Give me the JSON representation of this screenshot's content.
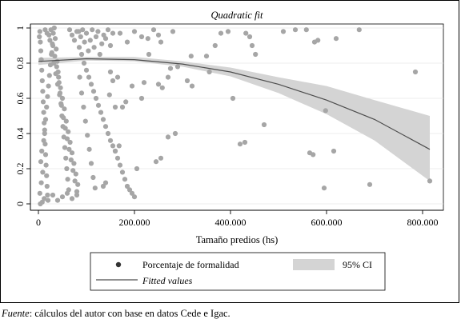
{
  "chart_data": {
    "type": "scatter",
    "title": "Quadratic fit",
    "xlabel": "Tamaño predios (hs)",
    "ylabel": "",
    "xlim": [
      0,
      820000
    ],
    "ylim": [
      0,
      1
    ],
    "x_ticks": [
      0,
      200000,
      400000,
      600000,
      800000
    ],
    "x_tick_labels": [
      "0",
      "200.000",
      "400.000",
      "600.000",
      "800.000"
    ],
    "y_ticks": [
      0,
      0.2,
      0.4,
      0.6,
      0.8,
      1
    ],
    "y_tick_labels": [
      "0",
      "0.2",
      "0.4",
      "0.6",
      "0.8",
      "1"
    ],
    "grid": true,
    "legend_position": "bottom",
    "legend": [
      {
        "label": "Porcentaje de formalidad",
        "symbol": "marker"
      },
      {
        "label": "95% CI",
        "symbol": "band"
      },
      {
        "label": "Fitted values",
        "symbol": "line"
      }
    ],
    "fit": {
      "x": [
        0,
        100000,
        200000,
        300000,
        400000,
        500000,
        600000,
        700000,
        815000
      ],
      "y": [
        0.81,
        0.825,
        0.82,
        0.795,
        0.75,
        0.68,
        0.59,
        0.48,
        0.31
      ],
      "ci_low": [
        0.79,
        0.815,
        0.81,
        0.78,
        0.725,
        0.63,
        0.51,
        0.36,
        0.13
      ],
      "ci_high": [
        0.83,
        0.835,
        0.835,
        0.81,
        0.775,
        0.72,
        0.67,
        0.59,
        0.5
      ]
    },
    "points": [
      [
        2000,
        0.95
      ],
      [
        3000,
        0.98
      ],
      [
        4000,
        0.92
      ],
      [
        5000,
        0.87
      ],
      [
        6000,
        0.82
      ],
      [
        7000,
        0.76
      ],
      [
        8000,
        0.7
      ],
      [
        9000,
        0.64
      ],
      [
        10000,
        0.58
      ],
      [
        11000,
        0.52
      ],
      [
        12000,
        0.46
      ],
      [
        13000,
        0.4
      ],
      [
        14000,
        0.34
      ],
      [
        15000,
        0.28
      ],
      [
        16000,
        0.22
      ],
      [
        17000,
        0.16
      ],
      [
        18000,
        0.1
      ],
      [
        19000,
        0.05
      ],
      [
        20000,
        0.02
      ],
      [
        4000,
        0.0
      ],
      [
        8000,
        0.01
      ],
      [
        12000,
        0.03
      ],
      [
        3000,
        0.06
      ],
      [
        6000,
        0.12
      ],
      [
        9000,
        0.18
      ],
      [
        5000,
        0.24
      ],
      [
        7000,
        0.3
      ],
      [
        11000,
        0.36
      ],
      [
        13000,
        0.42
      ],
      [
        15000,
        0.48
      ],
      [
        17000,
        0.55
      ],
      [
        19000,
        0.61
      ],
      [
        21000,
        0.67
      ],
      [
        23000,
        0.73
      ],
      [
        25000,
        0.79
      ],
      [
        27000,
        0.85
      ],
      [
        29000,
        0.91
      ],
      [
        31000,
        0.97
      ],
      [
        33000,
        1.0
      ],
      [
        35000,
        0.94
      ],
      [
        37000,
        0.88
      ],
      [
        39000,
        0.81
      ],
      [
        41000,
        0.75
      ],
      [
        43000,
        0.69
      ],
      [
        45000,
        0.63
      ],
      [
        47000,
        0.57
      ],
      [
        49000,
        0.5
      ],
      [
        51000,
        0.44
      ],
      [
        53000,
        0.38
      ],
      [
        55000,
        0.32
      ],
      [
        57000,
        0.26
      ],
      [
        59000,
        0.2
      ],
      [
        61000,
        0.14
      ],
      [
        63000,
        0.08
      ],
      [
        22000,
        0.96
      ],
      [
        26000,
        0.99
      ],
      [
        30000,
        0.9
      ],
      [
        34000,
        0.84
      ],
      [
        38000,
        0.78
      ],
      [
        42000,
        0.72
      ],
      [
        46000,
        0.66
      ],
      [
        50000,
        0.6
      ],
      [
        54000,
        0.54
      ],
      [
        58000,
        0.47
      ],
      [
        62000,
        0.41
      ],
      [
        66000,
        0.35
      ],
      [
        70000,
        0.29
      ],
      [
        74000,
        0.23
      ],
      [
        78000,
        0.17
      ],
      [
        82000,
        0.11
      ],
      [
        14000,
        0.99
      ],
      [
        18000,
        0.97
      ],
      [
        24000,
        0.93
      ],
      [
        28000,
        0.86
      ],
      [
        32000,
        0.8
      ],
      [
        36000,
        0.74
      ],
      [
        40000,
        0.68
      ],
      [
        44000,
        0.62
      ],
      [
        48000,
        0.56
      ],
      [
        52000,
        0.49
      ],
      [
        56000,
        0.43
      ],
      [
        60000,
        0.37
      ],
      [
        64000,
        0.31
      ],
      [
        68000,
        0.25
      ],
      [
        72000,
        0.19
      ],
      [
        76000,
        0.13
      ],
      [
        80000,
        0.07
      ],
      [
        84000,
        0.98
      ],
      [
        88000,
        0.95
      ],
      [
        92000,
        0.99
      ],
      [
        96000,
        0.92
      ],
      [
        100000,
        0.97
      ],
      [
        104000,
        0.87
      ],
      [
        108000,
        0.93
      ],
      [
        112000,
        0.99
      ],
      [
        116000,
        0.89
      ],
      [
        120000,
        0.95
      ],
      [
        124000,
        0.98
      ],
      [
        128000,
        0.85
      ],
      [
        132000,
        0.91
      ],
      [
        136000,
        0.96
      ],
      [
        140000,
        0.94
      ],
      [
        145000,
        0.99
      ],
      [
        150000,
        0.9
      ],
      [
        155000,
        0.97
      ],
      [
        65000,
        0.99
      ],
      [
        70000,
        0.96
      ],
      [
        75000,
        0.93
      ],
      [
        80000,
        0.98
      ],
      [
        85000,
        0.89
      ],
      [
        90000,
        0.85
      ],
      [
        95000,
        0.8
      ],
      [
        100000,
        0.76
      ],
      [
        105000,
        0.72
      ],
      [
        110000,
        0.68
      ],
      [
        115000,
        0.64
      ],
      [
        120000,
        0.6
      ],
      [
        125000,
        0.56
      ],
      [
        130000,
        0.52
      ],
      [
        135000,
        0.48
      ],
      [
        140000,
        0.44
      ],
      [
        145000,
        0.4
      ],
      [
        150000,
        0.36
      ],
      [
        155000,
        0.33
      ],
      [
        160000,
        0.3
      ],
      [
        165000,
        0.26
      ],
      [
        170000,
        0.22
      ],
      [
        175000,
        0.18
      ],
      [
        180000,
        0.14
      ],
      [
        185000,
        0.1
      ],
      [
        190000,
        0.08
      ],
      [
        195000,
        0.06
      ],
      [
        200000,
        0.04
      ],
      [
        86000,
        0.72
      ],
      [
        90000,
        0.63
      ],
      [
        94000,
        0.55
      ],
      [
        98000,
        0.47
      ],
      [
        102000,
        0.39
      ],
      [
        106000,
        0.31
      ],
      [
        110000,
        0.23
      ],
      [
        114000,
        0.15
      ],
      [
        118000,
        0.09
      ],
      [
        30000,
        0.05
      ],
      [
        40000,
        0.02
      ],
      [
        50000,
        0.04
      ],
      [
        60000,
        0.06
      ],
      [
        70000,
        0.03
      ],
      [
        80000,
        0.05
      ],
      [
        170000,
        0.97
      ],
      [
        185000,
        0.92
      ],
      [
        200000,
        0.98
      ],
      [
        215000,
        0.95
      ],
      [
        228000,
        0.94
      ],
      [
        230000,
        0.85
      ],
      [
        240000,
        0.99
      ],
      [
        250000,
        0.96
      ],
      [
        255000,
        0.92
      ],
      [
        150000,
        0.75
      ],
      [
        155000,
        0.7
      ],
      [
        160000,
        0.55
      ],
      [
        165000,
        0.72
      ],
      [
        148000,
        0.62
      ],
      [
        175000,
        0.55
      ],
      [
        182000,
        0.58
      ],
      [
        195000,
        0.67
      ],
      [
        215000,
        0.6
      ],
      [
        220000,
        0.69
      ],
      [
        250000,
        0.68
      ],
      [
        258000,
        0.66
      ],
      [
        270000,
        0.72
      ],
      [
        275000,
        0.77
      ],
      [
        280000,
        0.98
      ],
      [
        290000,
        0.78
      ],
      [
        310000,
        0.7
      ],
      [
        318000,
        0.84
      ],
      [
        320000,
        0.67
      ],
      [
        350000,
        0.84
      ],
      [
        356000,
        0.75
      ],
      [
        368000,
        0.9
      ],
      [
        380000,
        0.97
      ],
      [
        395000,
        0.98
      ],
      [
        405000,
        0.6
      ],
      [
        432000,
        0.97
      ],
      [
        440000,
        0.95
      ],
      [
        445000,
        0.9
      ],
      [
        452000,
        0.85
      ],
      [
        470000,
        0.45
      ],
      [
        510000,
        0.98
      ],
      [
        535000,
        0.99
      ],
      [
        558000,
        0.99
      ],
      [
        575000,
        0.92
      ],
      [
        582000,
        0.93
      ],
      [
        598000,
        0.53
      ],
      [
        620000,
        0.94
      ],
      [
        668000,
        0.99
      ],
      [
        785000,
        0.75
      ],
      [
        160000,
        0.3
      ],
      [
        168000,
        0.33
      ],
      [
        205000,
        0.2
      ],
      [
        255000,
        0.26
      ],
      [
        245000,
        0.24
      ],
      [
        270000,
        0.38
      ],
      [
        285000,
        0.4
      ],
      [
        430000,
        0.35
      ],
      [
        420000,
        0.34
      ],
      [
        572000,
        0.28
      ],
      [
        565000,
        0.29
      ],
      [
        595000,
        0.09
      ],
      [
        615000,
        0.3
      ],
      [
        690000,
        0.11
      ],
      [
        815000,
        0.13
      ],
      [
        135000,
        0.1
      ],
      [
        140000,
        0.12
      ]
    ]
  },
  "legend_box": {
    "marker_label": "Porcentaje de formalidad",
    "band_label": "95% CI",
    "line_label": "Fitted values"
  },
  "source": {
    "label": "Fuente",
    "text": ": cálculos del autor con base en datos Cede e Igac."
  },
  "colors": {
    "plot_background": "#ffffff",
    "points": "#a6a6a6",
    "ci_band": "#d4d4d4",
    "fit_line": "#4d4d4d",
    "grid": "#e6e6e6",
    "frame": "#000000"
  }
}
